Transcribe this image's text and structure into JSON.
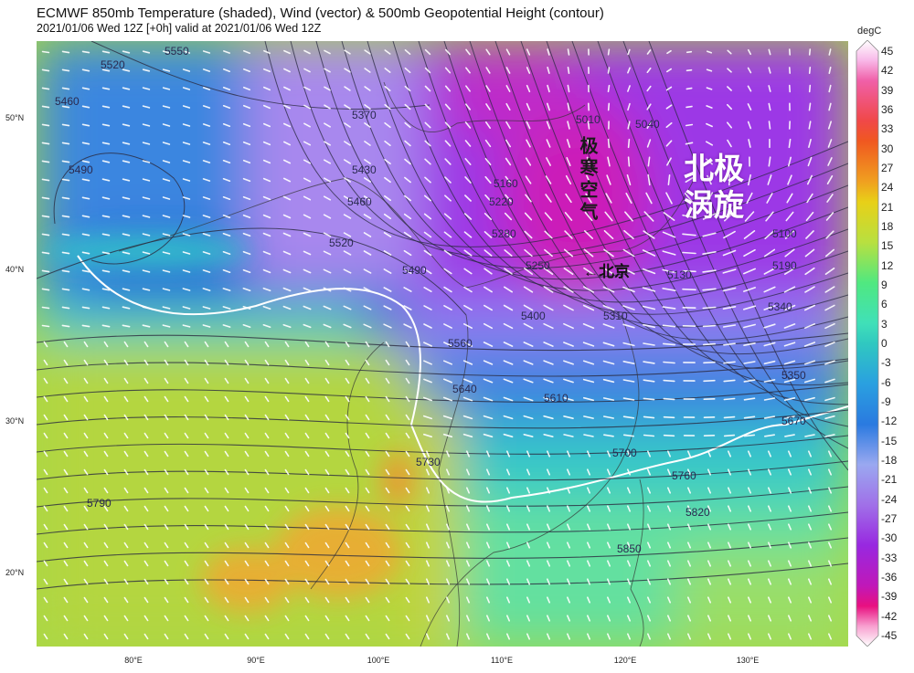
{
  "header": {
    "title": "ECMWF 850mb Temperature (shaded), Wind (vector) & 500mb Geopotential Height (contour)",
    "subtitle": "2021/01/06 Wed 12Z [+0h] valid at 2021/01/06 Wed 12Z"
  },
  "map": {
    "lat_labels": [
      "50°N",
      "40°N",
      "30°N",
      "20°N"
    ],
    "lon_labels": [
      "80°E",
      "90°E",
      "100°E",
      "110°E",
      "120°E",
      "130°E"
    ],
    "contour_labels": [
      "5550",
      "5520",
      "5460",
      "5490",
      "5370",
      "5430",
      "5460",
      "5520",
      "5490",
      "5560",
      "5640",
      "5610",
      "5400",
      "5250",
      "5280",
      "5220",
      "5160",
      "5010",
      "5040",
      "5130",
      "5100",
      "5190",
      "5340",
      "5310",
      "5350",
      "5670",
      "5700",
      "5730",
      "5760",
      "5790",
      "5820",
      "5850"
    ],
    "annotations": {
      "cold_air": "极寒空气",
      "beijing": "←北京",
      "polar_vortex_line1": "北极",
      "polar_vortex_line2": "涡旋"
    },
    "zero_isotherm_color": "#ffffff",
    "contour_color": "#2a2a40",
    "vector_color": "#ffffff"
  },
  "colorbar": {
    "unit": "degC",
    "ticks": [
      "45",
      "42",
      "39",
      "36",
      "33",
      "30",
      "27",
      "24",
      "21",
      "18",
      "15",
      "12",
      "9",
      "6",
      "3",
      "0",
      "-3",
      "-6",
      "-9",
      "-12",
      "-15",
      "-18",
      "-21",
      "-24",
      "-27",
      "-30",
      "-33",
      "-36",
      "-39",
      "-42",
      "-45"
    ],
    "color_stops": [
      {
        "v": 45,
        "c": "#ffffff"
      },
      {
        "v": 42,
        "c": "#f8b8e8"
      },
      {
        "v": 39,
        "c": "#f060a8"
      },
      {
        "v": 33,
        "c": "#f04848"
      },
      {
        "v": 30,
        "c": "#f05820"
      },
      {
        "v": 24,
        "c": "#f0a020"
      },
      {
        "v": 21,
        "c": "#e8d018"
      },
      {
        "v": 15,
        "c": "#b8e040"
      },
      {
        "v": 9,
        "c": "#50e880"
      },
      {
        "v": 3,
        "c": "#40e0b8"
      },
      {
        "v": 0,
        "c": "#30c8c0"
      },
      {
        "v": -6,
        "c": "#2aa0e0"
      },
      {
        "v": -12,
        "c": "#2a7ae0"
      },
      {
        "v": -18,
        "c": "#9aa8f0"
      },
      {
        "v": -24,
        "c": "#a070e8"
      },
      {
        "v": -30,
        "c": "#9828e0"
      },
      {
        "v": -36,
        "c": "#c018b8"
      },
      {
        "v": -39,
        "c": "#e81080"
      },
      {
        "v": -42,
        "c": "#f8a0d0"
      },
      {
        "v": -45,
        "c": "#ffffff"
      }
    ]
  }
}
